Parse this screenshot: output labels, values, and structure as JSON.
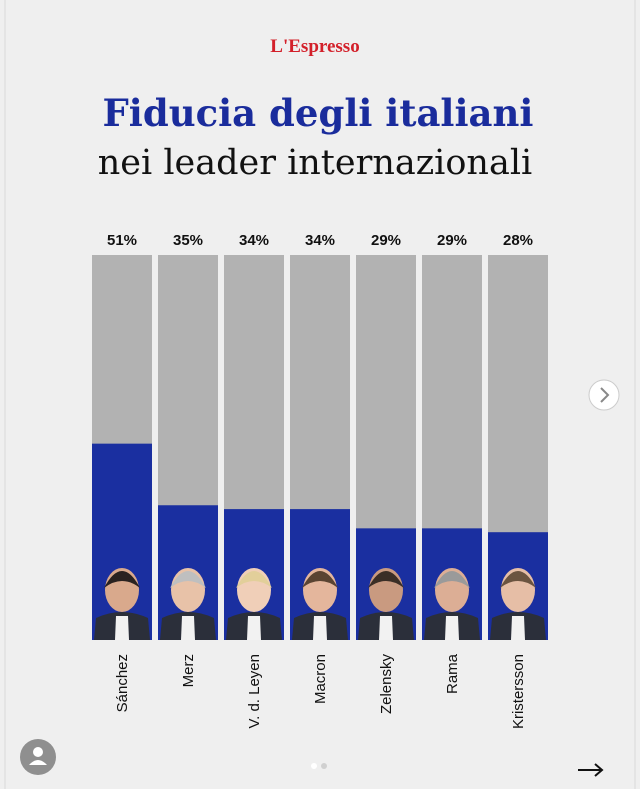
{
  "chart_data": {
    "type": "bar",
    "brand": "L'Espresso",
    "title": "Fiducia degli italiani",
    "subtitle": "nei leader internazionali",
    "categories": [
      "Sánchez",
      "Merz",
      "V. d. Leyen",
      "Macron",
      "Zelensky",
      "Rama",
      "Kristersson"
    ],
    "values": [
      51,
      35,
      34,
      34,
      29,
      29,
      28
    ],
    "value_labels": [
      "51%",
      "35%",
      "34%",
      "34%",
      "29%",
      "29%",
      "28%"
    ],
    "color": "#1a2fa0",
    "track_color": "#b2b2b2",
    "ylim": [
      0,
      100
    ]
  }
}
